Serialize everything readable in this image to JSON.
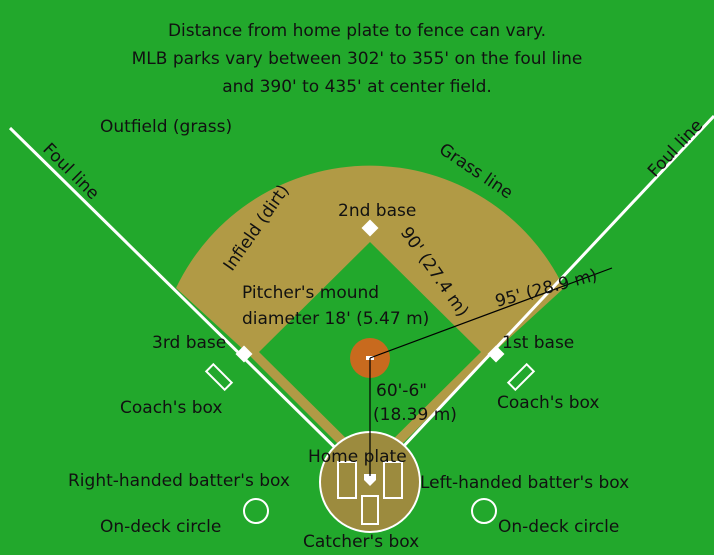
{
  "header": {
    "lines": [
      "Distance from home plate to fence can vary.",
      "MLB parks vary between 302' to 355' on the foul line",
      "and 390' to 435' at center field."
    ]
  },
  "labels": {
    "outfield": "Outfield (grass)",
    "foul_line_left": "Foul line",
    "foul_line_right": "Foul line",
    "grass_line": "Grass line",
    "infield": "Infield (dirt)",
    "second_base": "2nd base",
    "base_path": "90' (27.4 m)",
    "mound_distance": "95' (28.9 m)",
    "mound_line1": "Pitcher's mound",
    "mound_line2": "diameter 18' (5.47 m)",
    "third_base": "3rd base",
    "first_base": "1st base",
    "pitch_distance1": "60'-6\"",
    "pitch_distance2": "(18.39 m)",
    "coach_left": "Coach's box",
    "coach_right": "Coach's box",
    "home_plate": "Home plate",
    "right_batter": "Right-handed batter's box",
    "left_batter": "Left-handed batter's box",
    "on_deck_left": "On-deck circle",
    "on_deck_right": "On-deck circle",
    "catcher": "Catcher's box"
  }
}
